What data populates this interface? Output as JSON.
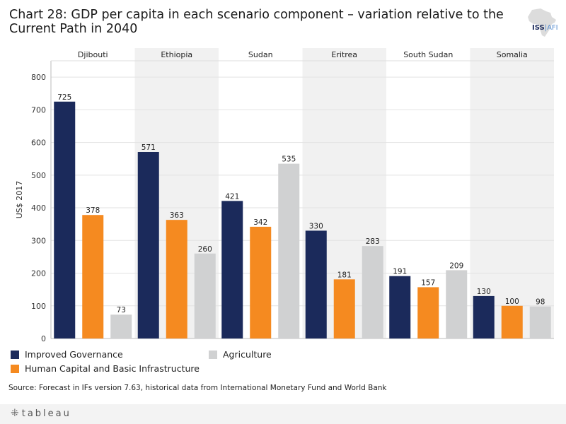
{
  "title": "Chart 28: GDP per capita in each scenario component – variation relative to the Current Path in 2040",
  "logo": {
    "brand": "ISS",
    "suffix": "AFI"
  },
  "colors": {
    "Improved Governance": "#1b2a5b",
    "Human Capital and Basic Infrastructure": "#f58a20",
    "Agriculture": "#d0d1d2",
    "panel_shade": "#f1f1f1",
    "grid": "#e2e2e2"
  },
  "chart_data": {
    "type": "bar",
    "ylabel": "US$ 2017",
    "ylim": [
      0,
      850
    ],
    "yticks": [
      0,
      100,
      200,
      300,
      400,
      500,
      600,
      700,
      800
    ],
    "categories": [
      "Djibouti",
      "Ethiopia",
      "Sudan",
      "Eritrea",
      "South Sudan",
      "Somalia"
    ],
    "series": [
      {
        "name": "Improved Governance",
        "values": [
          725,
          571,
          421,
          330,
          191,
          130
        ]
      },
      {
        "name": "Human Capital and Basic Infrastructure",
        "values": [
          378,
          363,
          342,
          181,
          157,
          100
        ]
      },
      {
        "name": "Agriculture",
        "values": [
          73,
          260,
          535,
          283,
          209,
          98
        ]
      }
    ]
  },
  "legend": {
    "items": [
      "Improved Governance",
      "Human Capital and Basic Infrastructure",
      "Agriculture"
    ]
  },
  "source": "Source: Forecast in IFs version 7.63, historical data from International Monetary Fund and World Bank",
  "footer": {
    "brand": "tableau",
    "icon": "tableau-icon"
  }
}
